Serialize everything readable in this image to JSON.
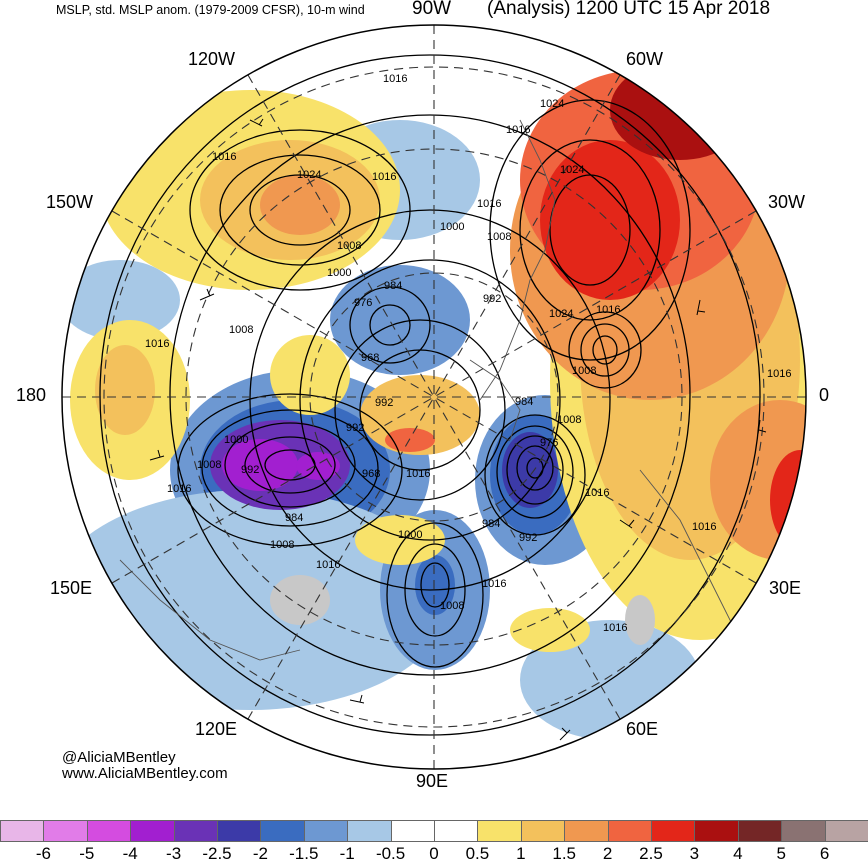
{
  "header": {
    "left_title": "MSLP, std. MSLP anom. (1979-2009 CFSR), 10-m wind",
    "center_label": "90W",
    "right_title": "(Analysis) 1200 UTC 15 Apr 2018"
  },
  "longitude_labels": {
    "w120": "120W",
    "w60": "60W",
    "w150": "150W",
    "w30": "30W",
    "lon180": "180",
    "lon0": "0",
    "e150": "150E",
    "e30": "30E",
    "e120": "120E",
    "e60": "60E",
    "e90": "90E"
  },
  "credits": {
    "twitter": "@AliciaMBentley",
    "website": "www.AliciaMBentley.com"
  },
  "isobar_labels": [
    {
      "id": "i1",
      "text": "1016"
    },
    {
      "id": "i2",
      "text": "1024"
    },
    {
      "id": "i3",
      "text": "1016"
    },
    {
      "id": "i4",
      "text": "1024"
    },
    {
      "id": "i5",
      "text": "1016"
    },
    {
      "id": "i6",
      "text": "1016"
    },
    {
      "id": "i7",
      "text": "1000"
    },
    {
      "id": "i8",
      "text": "1016"
    },
    {
      "id": "i9",
      "text": "1008"
    },
    {
      "id": "i10",
      "text": "1024"
    },
    {
      "id": "i11",
      "text": "1008"
    },
    {
      "id": "i12",
      "text": "1000"
    },
    {
      "id": "i13",
      "text": "984"
    },
    {
      "id": "i14",
      "text": "976"
    },
    {
      "id": "i15",
      "text": "992"
    },
    {
      "id": "i16",
      "text": "1008"
    },
    {
      "id": "i17",
      "text": "1016"
    },
    {
      "id": "i18",
      "text": "1024"
    },
    {
      "id": "i19",
      "text": "1016"
    },
    {
      "id": "i20",
      "text": "968"
    },
    {
      "id": "i21",
      "text": "1008"
    },
    {
      "id": "i22",
      "text": "992"
    },
    {
      "id": "i23",
      "text": "984"
    },
    {
      "id": "i24",
      "text": "992"
    },
    {
      "id": "i25",
      "text": "1016"
    },
    {
      "id": "i26",
      "text": "1008"
    },
    {
      "id": "i27",
      "text": "976"
    },
    {
      "id": "i28",
      "text": "1000"
    },
    {
      "id": "i29",
      "text": "1008"
    },
    {
      "id": "i30",
      "text": "992"
    },
    {
      "id": "i31",
      "text": "968"
    },
    {
      "id": "i32",
      "text": "1016"
    },
    {
      "id": "i33",
      "text": "1016"
    },
    {
      "id": "i34",
      "text": "984"
    },
    {
      "id": "i35",
      "text": "1000"
    },
    {
      "id": "i36",
      "text": "984"
    },
    {
      "id": "i37",
      "text": "992"
    },
    {
      "id": "i38",
      "text": "1008"
    },
    {
      "id": "i39",
      "text": "1016"
    },
    {
      "id": "i40",
      "text": "1016"
    },
    {
      "id": "i41",
      "text": "1008"
    },
    {
      "id": "i42",
      "text": "1016"
    },
    {
      "id": "i43",
      "text": "1016"
    },
    {
      "id": "i44",
      "text": "1016"
    }
  ],
  "colorbar": {
    "labels": [
      "-6",
      "-5",
      "-4",
      "-3",
      "-2.5",
      "-2",
      "-1.5",
      "-1",
      "-0.5",
      "0",
      "0.5",
      "1",
      "1.5",
      "2",
      "2.5",
      "3",
      "4",
      "5",
      "6"
    ],
    "colors": [
      "#e8b6e8",
      "#e17ce8",
      "#d44ce0",
      "#a21fd0",
      "#6a32b6",
      "#3c3aa8",
      "#3a6cc0",
      "#6d98d2",
      "#a7c8e6",
      "#ffffff",
      "#ffffff",
      "#f8e26a",
      "#f3c15c",
      "#f09850",
      "#f06440",
      "#e32619",
      "#aa1010",
      "#742626",
      "#8a7272",
      "#b8a3a3"
    ]
  },
  "anomaly_blobs": [
    {
      "id": "b1",
      "color": "#6d98d2"
    },
    {
      "id": "b2",
      "color": "#3a6cc0"
    },
    {
      "id": "b3",
      "color": "#a7c8e6"
    },
    {
      "id": "b4",
      "color": "#6a32b6"
    },
    {
      "id": "b5",
      "color": "#a21fd0"
    },
    {
      "id": "b6",
      "color": "#3c3aa8"
    },
    {
      "id": "b7",
      "color": "#a21fd0"
    },
    {
      "id": "b8",
      "color": "#f3c15c"
    },
    {
      "id": "b9",
      "color": "#f09850"
    },
    {
      "id": "b10",
      "color": "#f8e26a"
    },
    {
      "id": "b11",
      "color": "#f06440"
    },
    {
      "id": "b12",
      "color": "#e32619"
    },
    {
      "id": "b13",
      "color": "#aa1010"
    },
    {
      "id": "b14",
      "color": "#f09850"
    },
    {
      "id": "b15",
      "color": "#f8e26a"
    },
    {
      "id": "b16",
      "color": "#f3c15c"
    },
    {
      "id": "b17",
      "color": "#f09850"
    },
    {
      "id": "b18",
      "color": "#f06440"
    },
    {
      "id": "b19",
      "color": "#3a6cc0"
    },
    {
      "id": "b20",
      "color": "#6d98d2"
    },
    {
      "id": "b21",
      "color": "#f8e26a"
    },
    {
      "id": "b22",
      "color": "#f3c15c"
    },
    {
      "id": "b23",
      "color": "#f06440"
    },
    {
      "id": "b24",
      "color": "#f8e26a"
    },
    {
      "id": "b25",
      "color": "#a7c8e6"
    },
    {
      "id": "b26",
      "color": "#6d98d2"
    },
    {
      "id": "b27",
      "color": "#e32619"
    },
    {
      "id": "b28",
      "color": "#f3c15c"
    },
    {
      "id": "b29",
      "color": "#f8e26a"
    },
    {
      "id": "b30",
      "color": "#a7c8e6"
    },
    {
      "id": "b31",
      "color": "#c8c8c8"
    }
  ]
}
